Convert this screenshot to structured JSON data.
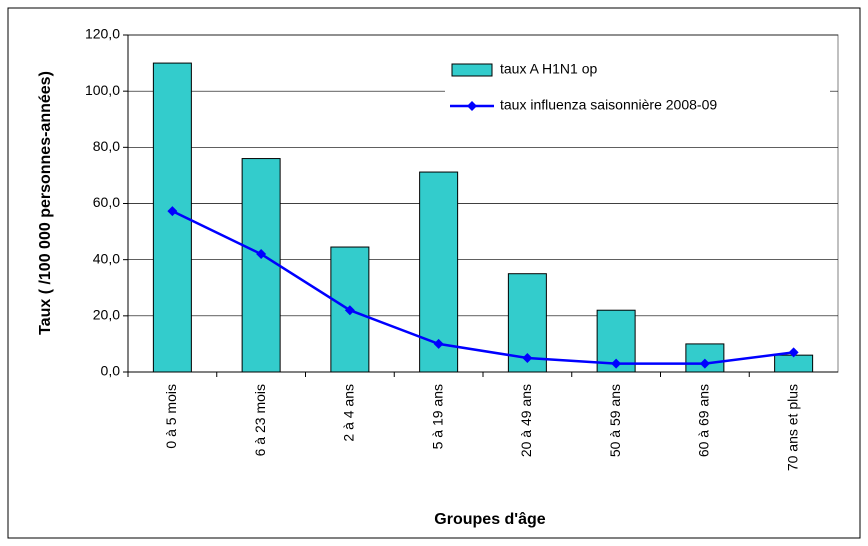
{
  "chart_data": {
    "type": "bar_line",
    "x_label": "Groupes d'âge",
    "y_label": "Taux ( /100 000 personnes-années)",
    "categories": [
      "0 à 5 mois",
      "6 à 23 mois",
      "2 à 4 ans",
      "5 à 19 ans",
      "20 à 49 ans",
      "50 à 59 ans",
      "60 à 69 ans",
      "70 ans et plus"
    ],
    "series": [
      {
        "name": "taux A H1N1 op",
        "type": "bar",
        "color": "#33cccc",
        "values": [
          110,
          76,
          44.5,
          71.2,
          35,
          22,
          10,
          6
        ]
      },
      {
        "name": "taux influenza saisonnière 2008-09",
        "type": "line",
        "color": "#0000ff",
        "values": [
          57.3,
          42,
          22,
          10,
          5,
          3,
          3,
          7
        ]
      }
    ],
    "ylim": [
      0,
      120
    ],
    "yticks": [
      {
        "value": 0,
        "label": "0,0"
      },
      {
        "value": 20,
        "label": "20,0"
      },
      {
        "value": 40,
        "label": "40,0"
      },
      {
        "value": 60,
        "label": "60,0"
      },
      {
        "value": 80,
        "label": "80,0"
      },
      {
        "value": 100,
        "label": "100,0"
      },
      {
        "value": 120,
        "label": "120,0"
      }
    ],
    "grid": true
  }
}
